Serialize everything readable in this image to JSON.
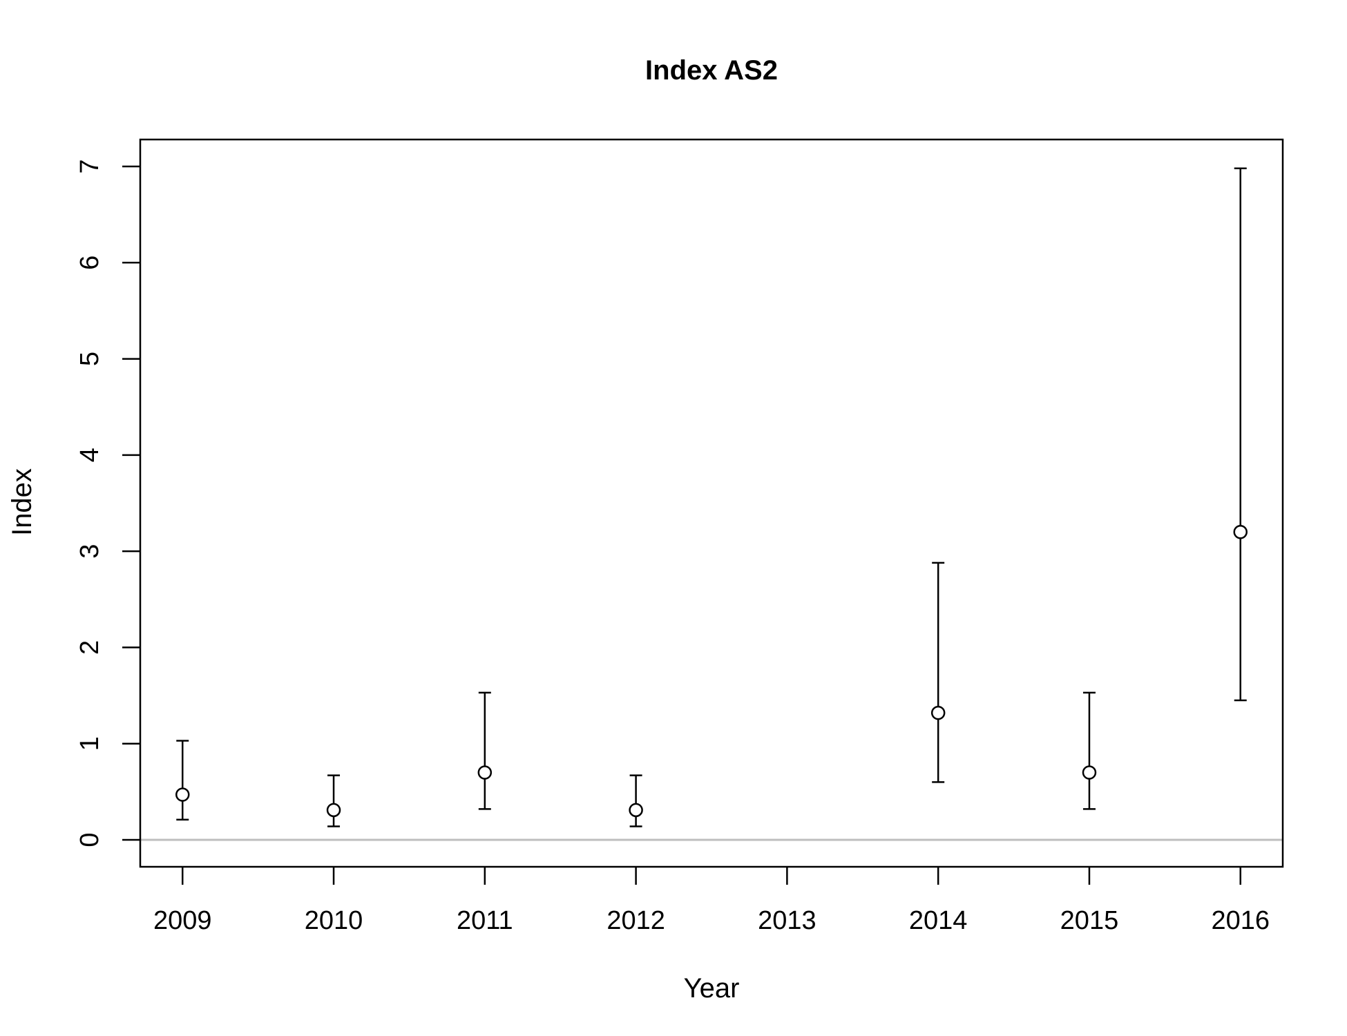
{
  "chart_data": {
    "type": "scatter",
    "title": "Index AS2",
    "xlabel": "Year",
    "ylabel": "Index",
    "x_ticks": [
      "2009",
      "2010",
      "2011",
      "2012",
      "2013",
      "2014",
      "2015",
      "2016"
    ],
    "y_ticks": [
      "0",
      "1",
      "2",
      "3",
      "4",
      "5",
      "6",
      "7"
    ],
    "xlim": [
      2008.72,
      2016.28
    ],
    "ylim": [
      -0.28,
      7.28
    ],
    "reference_line": {
      "y": 0,
      "color": "#bebebe"
    },
    "points": [
      {
        "x": 2009,
        "y": 0.47,
        "lower": 0.21,
        "upper": 1.03
      },
      {
        "x": 2010,
        "y": 0.31,
        "lower": 0.14,
        "upper": 0.67
      },
      {
        "x": 2011,
        "y": 0.7,
        "lower": 0.32,
        "upper": 1.53
      },
      {
        "x": 2012,
        "y": 0.31,
        "lower": 0.14,
        "upper": 0.67
      },
      {
        "x": 2014,
        "y": 1.32,
        "lower": 0.6,
        "upper": 2.88
      },
      {
        "x": 2015,
        "y": 0.7,
        "lower": 0.32,
        "upper": 1.53
      },
      {
        "x": 2016,
        "y": 3.2,
        "lower": 1.45,
        "upper": 6.98
      }
    ],
    "grid": false,
    "legend": "none",
    "colors": {
      "points": "#000000",
      "error_bars": "#000000",
      "zero_line": "#bebebe"
    }
  }
}
